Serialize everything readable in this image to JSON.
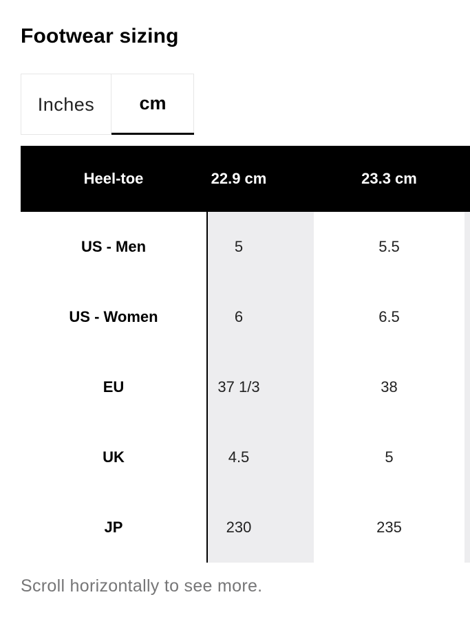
{
  "header": {
    "title": "Footwear sizing"
  },
  "tabs": [
    "Inches",
    "cm"
  ],
  "table": {
    "header": [
      "Heel-toe",
      "22.9 cm",
      "23.3 cm"
    ],
    "rows": [
      [
        "US - Men",
        "5",
        "5.5"
      ],
      [
        "US - Women",
        "6",
        "6.5"
      ],
      [
        "EU",
        "37 1/3",
        "38"
      ],
      [
        "UK",
        "4.5",
        "5"
      ],
      [
        "JP",
        "230",
        "235"
      ]
    ]
  },
  "footer": {
    "note": "Scroll horizontally to see more."
  }
}
